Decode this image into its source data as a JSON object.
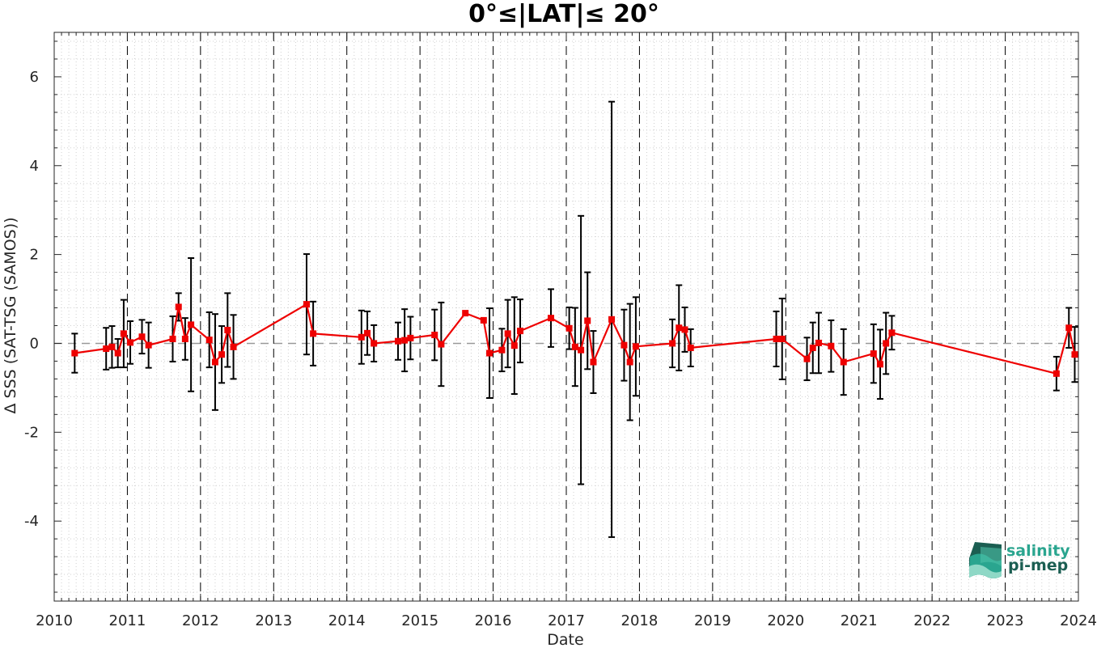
{
  "chart_data": {
    "type": "line",
    "title": "0°≤|LAT|≤ 20°",
    "xlabel": "Date",
    "ylabel": "Δ SSS (SAT-TSG (SAMOS))",
    "xlim": [
      2010,
      2024
    ],
    "ylim": [
      -5.8,
      7
    ],
    "x_ticks": [
      2010,
      2011,
      2012,
      2013,
      2014,
      2015,
      2016,
      2017,
      2018,
      2019,
      2020,
      2021,
      2022,
      2023,
      2024
    ],
    "x_tick_labels": [
      "2010",
      "2011",
      "2012",
      "2013",
      "2014",
      "2015",
      "2016",
      "2017",
      "2018",
      "2019",
      "2020",
      "2021",
      "2022",
      "2023",
      "2024"
    ],
    "y_ticks": [
      -4,
      -2,
      0,
      2,
      4,
      6
    ],
    "y_tick_labels": [
      "-4",
      "-2",
      "0",
      "2",
      "4",
      "6"
    ],
    "grid": "minor dotted",
    "year_dividers": "dashed vertical",
    "reference_line": 0,
    "colors": {
      "line": "#ee0000",
      "marker": "#ee0000",
      "errorbar": "#000000",
      "zero_line": "#999999",
      "logo_dark": "#1b5e52",
      "logo_teal": "#2aa58f"
    },
    "series": [
      {
        "x": [
          2010.28,
          2010.71,
          2010.79,
          2010.87,
          2010.95,
          2011.04,
          2011.2,
          2011.29,
          2011.62,
          2011.7,
          2011.79,
          2011.87,
          2012.12,
          2012.2,
          2012.29,
          2012.37,
          2012.45,
          2013.45,
          2013.54,
          2014.2,
          2014.28,
          2014.37,
          2014.7,
          2014.79,
          2014.87,
          2015.2,
          2015.29,
          2015.62,
          2015.87,
          2015.95,
          2016.12,
          2016.2,
          2016.29,
          2016.37,
          2016.79,
          2017.04,
          2017.12,
          2017.2,
          2017.29,
          2017.37,
          2017.62,
          2017.79,
          2017.87,
          2017.95,
          2018.45,
          2018.54,
          2018.62,
          2018.7,
          2019.87,
          2019.95,
          2020.29,
          2020.37,
          2020.45,
          2020.62,
          2020.79,
          2021.2,
          2021.29,
          2021.37,
          2021.45,
          2023.7,
          2023.87,
          2023.95
        ],
        "y": [
          -0.22,
          -0.12,
          -0.08,
          -0.22,
          0.22,
          0.02,
          0.15,
          -0.04,
          0.1,
          0.82,
          0.1,
          0.42,
          0.08,
          -0.42,
          -0.25,
          0.3,
          -0.08,
          0.88,
          0.22,
          0.14,
          0.23,
          0.0,
          0.05,
          0.07,
          0.12,
          0.19,
          -0.02,
          0.68,
          0.52,
          -0.22,
          -0.15,
          0.22,
          -0.05,
          0.28,
          0.57,
          0.34,
          -0.08,
          -0.15,
          0.51,
          -0.42,
          0.54,
          -0.04,
          -0.42,
          -0.07,
          0.0,
          0.35,
          0.31,
          -0.1,
          0.1,
          0.1,
          -0.35,
          -0.1,
          0.01,
          -0.06,
          -0.42,
          -0.23,
          -0.47,
          0.0,
          0.24,
          -0.68,
          0.35,
          -0.25
        ],
        "error": [
          0.44,
          0.47,
          0.47,
          0.32,
          0.76,
          0.48,
          0.38,
          0.51,
          0.51,
          0.31,
          0.47,
          1.5,
          0.62,
          1.08,
          0.64,
          0.83,
          0.72,
          1.13,
          0.72,
          0.6,
          0.49,
          0.41,
          0.42,
          0.7,
          0.48,
          0.57,
          0.94,
          0.0,
          0.0,
          1.01,
          0.48,
          0.76,
          1.09,
          0.71,
          0.65,
          0.47,
          0.88,
          3.02,
          1.09,
          0.7,
          4.9,
          0.8,
          1.31,
          1.11,
          0.54,
          0.96,
          0.5,
          0.42,
          0.62,
          0.91,
          0.48,
          0.57,
          0.68,
          0.58,
          0.74,
          0.66,
          0.78,
          0.69,
          0.38,
          0.38,
          0.45,
          0.62
        ]
      }
    ]
  },
  "logo": {
    "line1": "salinity",
    "line2": "pi-mep"
  }
}
